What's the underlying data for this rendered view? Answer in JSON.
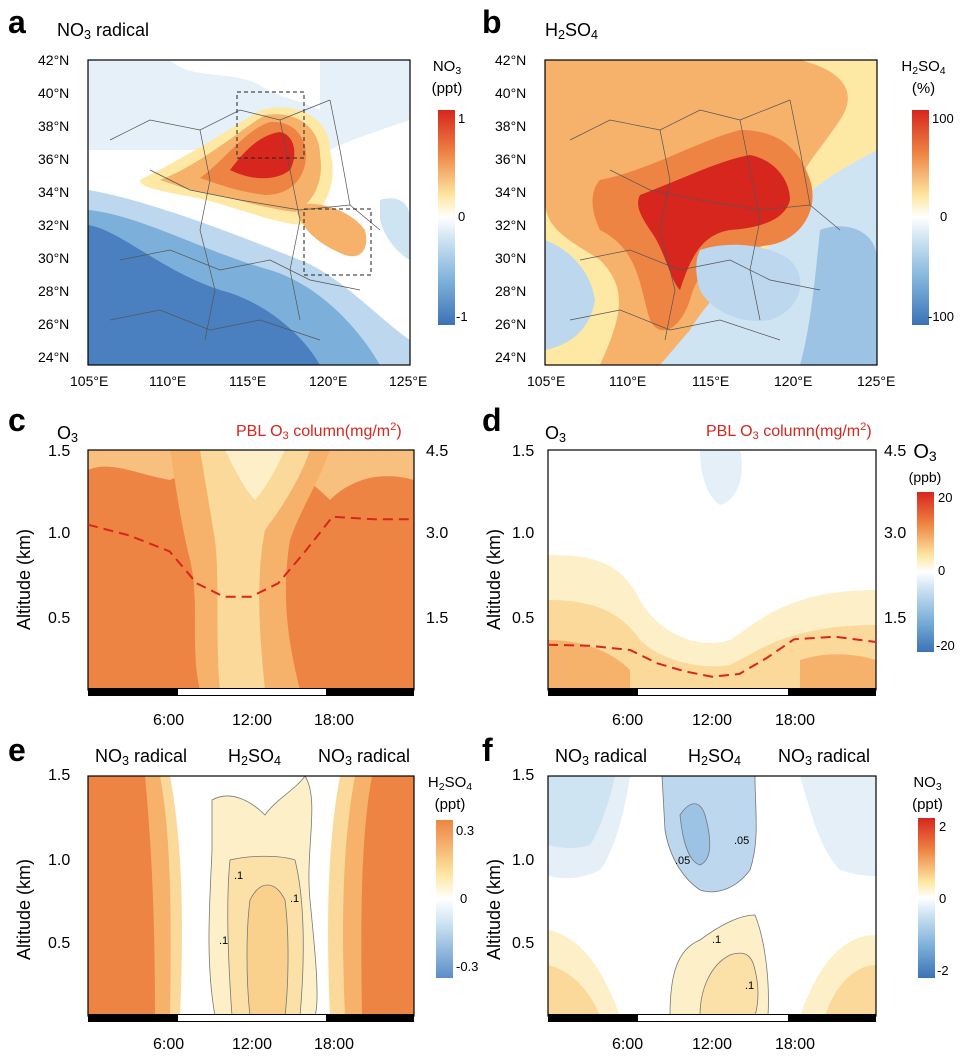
{
  "panels": {
    "a": {
      "letter": "a",
      "title_main": "NO",
      "title_sub": "3",
      "title_rest": " radical",
      "cb_title_main": "NO",
      "cb_title_sub": "3",
      "cb_unit": "(ppt)",
      "cb_ticks": [
        "1",
        "0",
        "-1"
      ]
    },
    "b": {
      "letter": "b",
      "title_main": "H",
      "title_sub": "2",
      "title_rest": "SO",
      "title_sub2": "4",
      "cb_title_main": "H",
      "cb_title_sub": "2",
      "cb_title_rest": "SO",
      "cb_title_sub2": "4",
      "cb_unit": "(%)",
      "cb_ticks": [
        "100",
        "0",
        "-100"
      ]
    },
    "c": {
      "letter": "c",
      "left_main": "O",
      "left_sub": "3",
      "right_main": "PBL O",
      "right_sub": "3",
      "right_rest": " column(mg/m",
      "right_sup": "2",
      "right_end": ")"
    },
    "d": {
      "letter": "d",
      "left_main": "O",
      "left_sub": "3",
      "right_main": "PBL O",
      "right_sub": "3",
      "right_rest": " column(mg/m",
      "right_sup": "2",
      "right_end": ")",
      "cb_title_main": "O",
      "cb_title_sub": "3",
      "cb_unit": "(ppb)",
      "cb_ticks": [
        "20",
        "0",
        "-20"
      ]
    },
    "e": {
      "letter": "e",
      "t1_main": "NO",
      "t1_sub": "3",
      "t1_rest": " radical",
      "t2_main": "H",
      "t2_sub": "2",
      "t2_rest": "SO",
      "t2_sub2": "4",
      "t3_main": "NO",
      "t3_sub": "3",
      "t3_rest": " radical",
      "cb_title_main": "H",
      "cb_title_sub": "2",
      "cb_title_rest": "SO",
      "cb_title_sub2": "4",
      "cb_unit": "(ppt)",
      "cb_ticks": [
        "0.3",
        "0",
        "-0.3"
      ],
      "contour_labels": [
        ".1",
        ".1",
        ".1"
      ]
    },
    "f": {
      "letter": "f",
      "t1_main": "NO",
      "t1_sub": "3",
      "t1_rest": " radical",
      "t2_main": "H",
      "t2_sub": "2",
      "t2_rest": "SO",
      "t2_sub2": "4",
      "t3_main": "NO",
      "t3_sub": "3",
      "t3_rest": " radical",
      "cb_title_main": "NO",
      "cb_title_sub": "3",
      "cb_unit": "(ppt)",
      "cb_ticks": [
        "2",
        "0",
        "-2"
      ],
      "contour_labels": [
        ".05",
        ".05",
        ".1",
        ".1"
      ]
    }
  },
  "map_axes": {
    "lat_ticks": [
      "42°N",
      "40°N",
      "38°N",
      "36°N",
      "34°N",
      "32°N",
      "30°N",
      "28°N",
      "26°N",
      "24°N"
    ],
    "lon_ticks": [
      "105°E",
      "110°E",
      "115°E",
      "120°E",
      "125°E"
    ]
  },
  "profile_axes": {
    "ylabel": "Altitude (km)",
    "y_ticks": [
      "1.5",
      "1.0",
      "0.5"
    ],
    "x_ticks": [
      "6:00",
      "12:00",
      "18:00"
    ],
    "right_ticks": [
      "4.5",
      "3.0",
      "1.5"
    ]
  },
  "colors": {
    "red": "#d6261e",
    "orange": "#ee8443",
    "blue": "#3b72b5"
  },
  "chart_data": [
    {
      "type": "heatmap",
      "panel": "a",
      "title": "NO3 radical",
      "colorbar_label": "NO3 (ppt)",
      "colorbar_range": [
        -1,
        1
      ],
      "x_range": [
        "105°E",
        "125°E"
      ],
      "y_range": [
        "24°N",
        "42°N"
      ]
    },
    {
      "type": "heatmap",
      "panel": "b",
      "title": "H2SO4",
      "colorbar_label": "H2SO4 (%)",
      "colorbar_range": [
        -100,
        100
      ],
      "x_range": [
        "105°E",
        "125°E"
      ],
      "y_range": [
        "24°N",
        "42°N"
      ]
    },
    {
      "type": "line",
      "panel": "c",
      "title": "O3",
      "series": [
        {
          "name": "PBL O3 column(mg/m2)",
          "x": [
            0,
            3,
            6,
            8,
            10,
            12,
            14,
            16,
            18,
            21,
            24
          ],
          "y": [
            3.1,
            2.9,
            2.6,
            2.0,
            1.75,
            1.75,
            2.0,
            2.6,
            3.25,
            3.2,
            3.2
          ]
        }
      ],
      "ylabel": "Altitude (km)",
      "ylim": [
        0,
        1.5
      ],
      "y2lim": [
        0,
        4.5
      ]
    },
    {
      "type": "line",
      "panel": "d",
      "title": "O3",
      "series": [
        {
          "name": "PBL O3 column(mg/m2)",
          "x": [
            0,
            3,
            6,
            8,
            10,
            12,
            14,
            16,
            18,
            21,
            24
          ],
          "y": [
            0.85,
            0.83,
            0.75,
            0.5,
            0.35,
            0.25,
            0.3,
            0.6,
            0.95,
            1.0,
            0.9
          ]
        }
      ],
      "ylabel": "Altitude (km)",
      "ylim": [
        0,
        1.5
      ],
      "y2lim": [
        0,
        4.5
      ],
      "colorbar_label": "O3 (ppb)",
      "colorbar_range": [
        -20,
        20
      ]
    },
    {
      "type": "heatmap",
      "panel": "e",
      "title": "NO3 radical / H2SO4 / NO3 radical",
      "ylabel": "Altitude (km)",
      "ylim": [
        0,
        1.5
      ],
      "colorbar_label": "H2SO4 (ppt)",
      "colorbar_range": [
        -0.3,
        0.3
      ]
    },
    {
      "type": "heatmap",
      "panel": "f",
      "title": "NO3 radical / H2SO4 / NO3 radical",
      "ylabel": "Altitude (km)",
      "ylim": [
        0,
        1.5
      ],
      "colorbar_label": "NO3 (ppt)",
      "colorbar_range": [
        -2,
        2
      ]
    }
  ]
}
